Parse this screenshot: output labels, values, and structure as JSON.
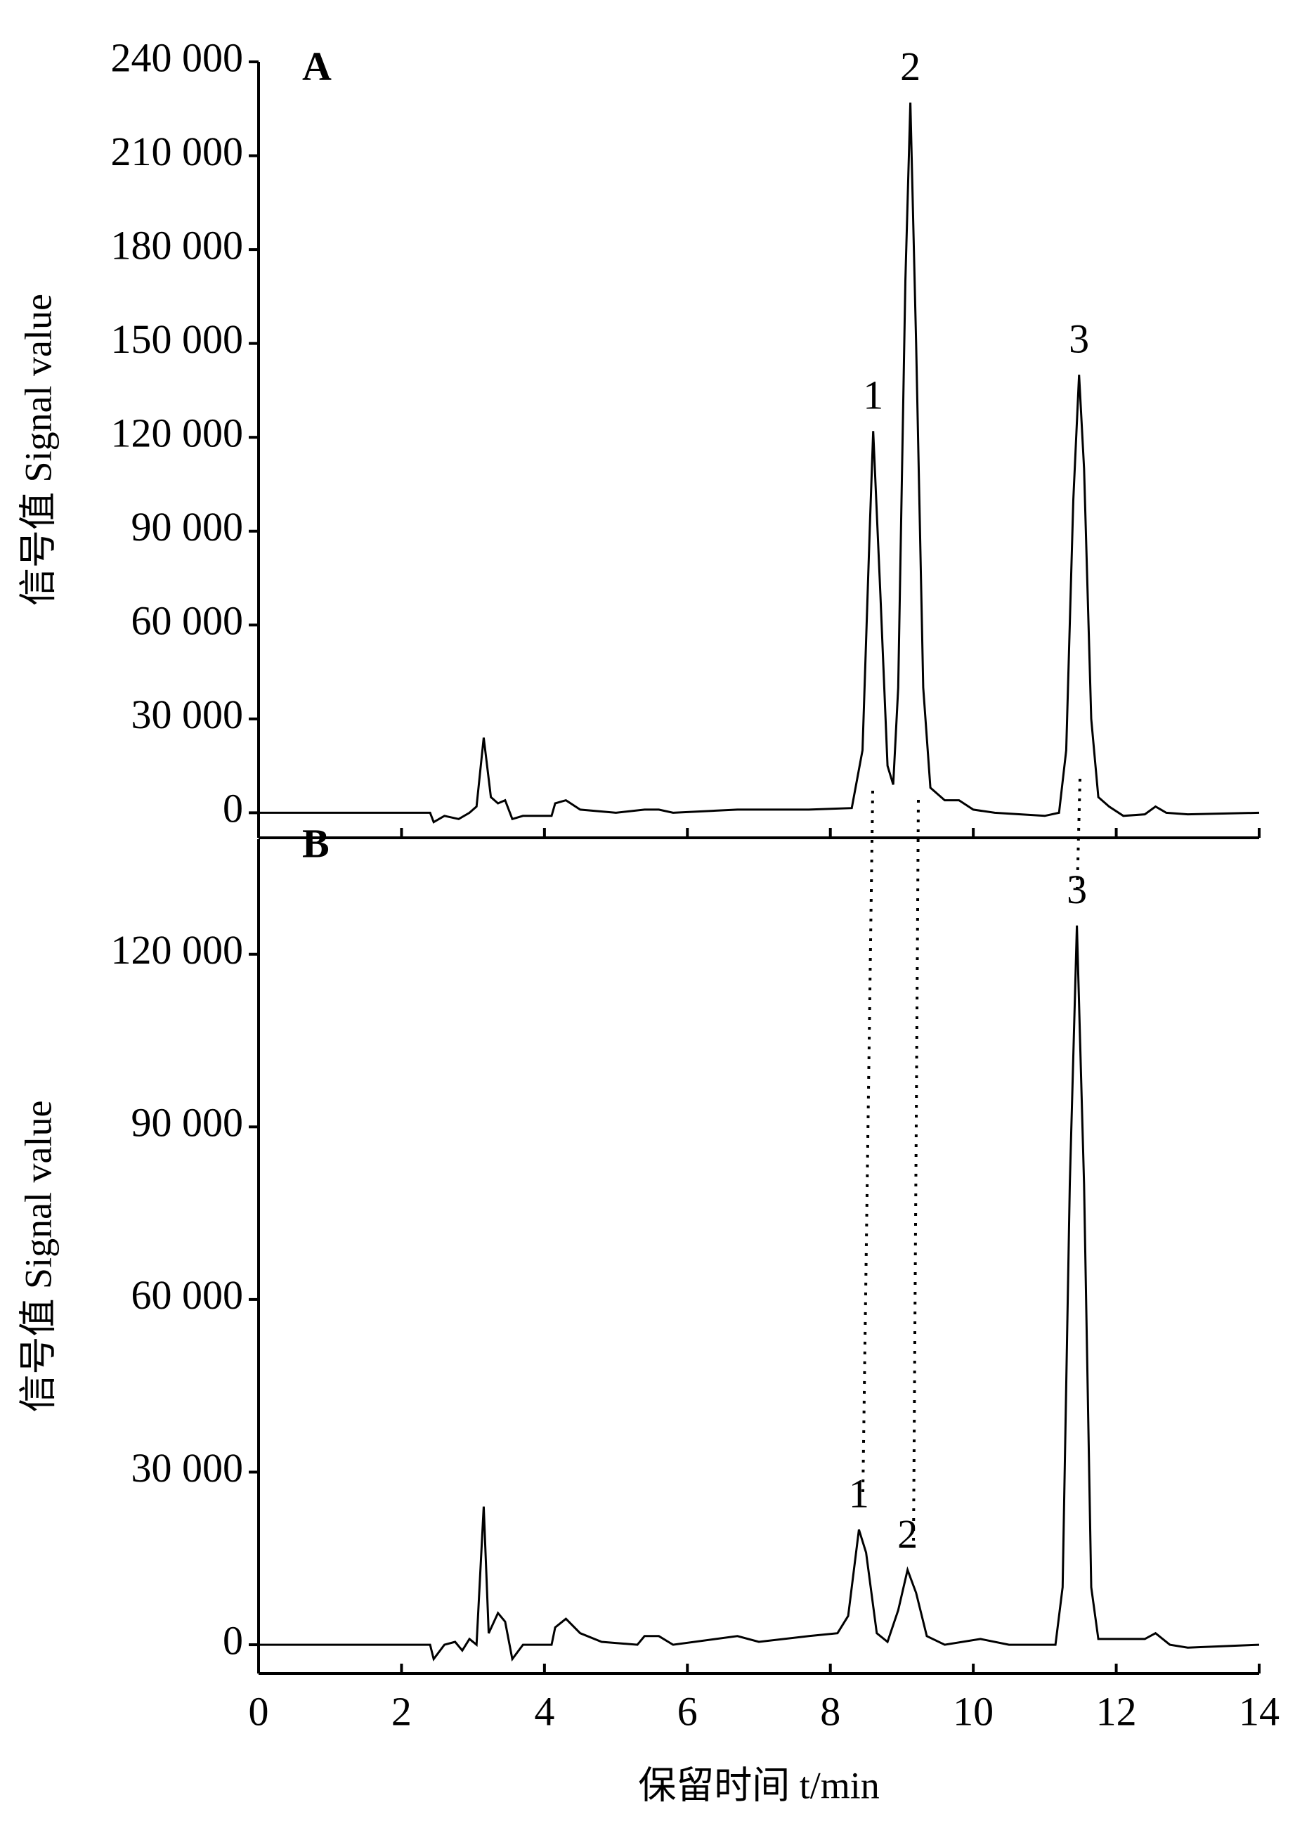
{
  "chart_data": [
    {
      "type": "line",
      "label": "A",
      "ylabel": "信号值 Signal value",
      "color": "#000000",
      "xlim": [
        0,
        14
      ],
      "xticks": [
        0,
        2,
        4,
        6,
        8,
        10,
        12,
        14
      ],
      "xtick_labels": false,
      "ylim": [
        -8000,
        240000
      ],
      "yticks": [
        0,
        {
          "value": 30000,
          "label": "30 000"
        },
        {
          "value": 60000,
          "label": "60 000"
        },
        {
          "value": 90000,
          "label": "90 000"
        },
        {
          "value": 120000,
          "label": "120 000"
        },
        {
          "value": 150000,
          "label": "150 000"
        },
        {
          "value": 180000,
          "label": "180 000"
        },
        {
          "value": 210000,
          "label": "210 000"
        },
        {
          "value": 240000,
          "label": "240 000"
        }
      ],
      "x": [
        0,
        2.4,
        2.45,
        2.6,
        2.8,
        2.95,
        3.05,
        3.15,
        3.25,
        3.35,
        3.45,
        3.55,
        3.7,
        4.1,
        4.15,
        4.3,
        4.5,
        5.0,
        5.4,
        5.6,
        5.8,
        6.7,
        7.7,
        8.3,
        8.45,
        8.55,
        8.6,
        8.7,
        8.8,
        8.88,
        8.95,
        9.05,
        9.12,
        9.2,
        9.3,
        9.4,
        9.6,
        9.8,
        10.0,
        10.3,
        11.0,
        11.2,
        11.3,
        11.4,
        11.48,
        11.55,
        11.65,
        11.75,
        11.9,
        12.1,
        12.4,
        12.55,
        12.7,
        13.0,
        14
      ],
      "values": [
        0,
        0,
        -3000,
        -1000,
        -2000,
        0,
        2000,
        24000,
        5000,
        3000,
        4000,
        -2000,
        -1000,
        -1000,
        3000,
        4000,
        1000,
        0,
        1000,
        1000,
        0,
        1000,
        1000,
        1500,
        20000,
        90000,
        122000,
        70000,
        15000,
        9000,
        40000,
        170000,
        227000,
        150000,
        40000,
        8000,
        4000,
        4000,
        1000,
        0,
        -1000,
        0,
        20000,
        100000,
        140000,
        110000,
        30000,
        5000,
        2000,
        -1000,
        -500,
        2000,
        0,
        -500,
        0
      ],
      "annotations": [
        {
          "text": "1",
          "x": 8.6,
          "y": 122000
        },
        {
          "text": "2",
          "x": 9.12,
          "y": 227000
        },
        {
          "text": "3",
          "x": 11.48,
          "y": 140000
        }
      ]
    },
    {
      "type": "line",
      "label": "B",
      "ylabel": "信号值 Signal value",
      "xlabel": "保留时间 t/min",
      "color": "#000000",
      "xlim": [
        0,
        14
      ],
      "xticks": [
        0,
        2,
        4,
        6,
        8,
        10,
        12,
        14
      ],
      "xtick_labels": true,
      "ylim": [
        -5000,
        140000
      ],
      "yticks": [
        0,
        {
          "value": 30000,
          "label": "30 000"
        },
        {
          "value": 60000,
          "label": "60 000"
        },
        {
          "value": 90000,
          "label": "90 000"
        },
        {
          "value": 120000,
          "label": "120 000"
        }
      ],
      "x": [
        0,
        2.4,
        2.45,
        2.6,
        2.75,
        2.85,
        2.95,
        3.05,
        3.15,
        3.22,
        3.35,
        3.45,
        3.55,
        3.7,
        4.1,
        4.15,
        4.3,
        4.5,
        4.8,
        5.3,
        5.4,
        5.6,
        5.8,
        6.7,
        7.0,
        7.7,
        8.1,
        8.25,
        8.4,
        8.5,
        8.65,
        8.8,
        8.95,
        9.08,
        9.2,
        9.35,
        9.6,
        10.1,
        10.5,
        11.15,
        11.25,
        11.35,
        11.45,
        11.55,
        11.65,
        11.75,
        12.4,
        12.55,
        12.75,
        13.0,
        14
      ],
      "values": [
        0,
        0,
        -2500,
        0,
        500,
        -1000,
        1000,
        0,
        24000,
        2000,
        5500,
        4000,
        -2500,
        0,
        0,
        3000,
        4500,
        2000,
        500,
        0,
        1500,
        1500,
        0,
        1500,
        500,
        1500,
        2000,
        5000,
        20000,
        16000,
        2000,
        500,
        6000,
        13000,
        9000,
        1500,
        0,
        1000,
        0,
        0,
        10000,
        80000,
        125000,
        80000,
        10000,
        1000,
        1000,
        2000,
        0,
        -500,
        0
      ],
      "annotations": [
        {
          "text": "1",
          "x": 8.4,
          "y": 20000
        },
        {
          "text": "2",
          "x": 9.08,
          "y": 13000
        },
        {
          "text": "3",
          "x": 11.45,
          "y": 125000
        }
      ]
    }
  ]
}
